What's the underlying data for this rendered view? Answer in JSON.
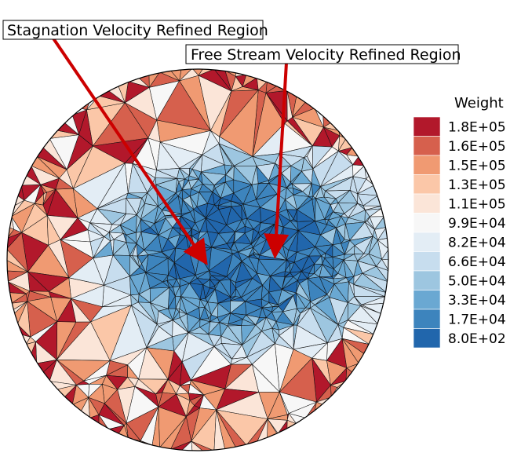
{
  "figure": {
    "description_type": "unstructured triangular mesh colored by weight",
    "annotations": [
      {
        "label": "Stagnation Velocity Refined Region",
        "arrow_color": "#cc0000"
      },
      {
        "label": "Free Stream Velocity Refined Region",
        "arrow_color": "#cc0000"
      }
    ]
  },
  "legend": {
    "title": "Weight",
    "entries": [
      {
        "label": "1.8E+05",
        "color": "#b2182b"
      },
      {
        "label": "1.6E+05",
        "color": "#d6604d"
      },
      {
        "label": "1.5E+05",
        "color": "#f09a72"
      },
      {
        "label": "1.3E+05",
        "color": "#fbc7a8"
      },
      {
        "label": "1.1E+05",
        "color": "#fbe5d8"
      },
      {
        "label": "9.9E+04",
        "color": "#f7f7f7"
      },
      {
        "label": "8.2E+04",
        "color": "#e3edf5"
      },
      {
        "label": "6.6E+04",
        "color": "#c7ddee"
      },
      {
        "label": "5.0E+04",
        "color": "#9dc6e0"
      },
      {
        "label": "3.3E+04",
        "color": "#6aa8d2"
      },
      {
        "label": "1.7E+04",
        "color": "#3d84bd"
      },
      {
        "label": "8.0E+02",
        "color": "#2166ac"
      }
    ]
  }
}
